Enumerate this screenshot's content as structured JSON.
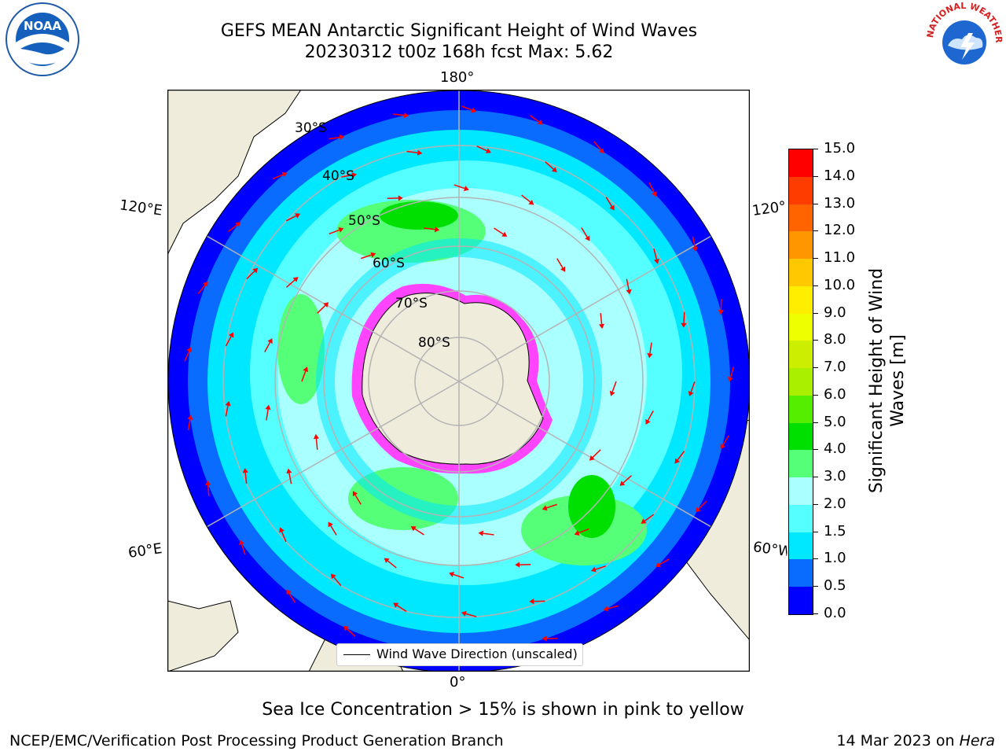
{
  "header": {
    "title_line1": "GEFS MEAN Antarctic Significant Height of Wind Waves",
    "title_line2": "20230312 t00z 168h fcst   Max: 5.62"
  },
  "logos": {
    "left": "NOAA",
    "right": "NATIONAL WEATHER SERVICE"
  },
  "map": {
    "projection": "south-polar-stereographic",
    "lon_labels": {
      "top": "180°",
      "bottom": "0°",
      "left_upper": "120°E",
      "left_lower": "60°E",
      "right_upper": "120°W",
      "right_lower": "60°W"
    },
    "lat_labels": [
      "30°S",
      "40°S",
      "50°S",
      "60°S",
      "70°S",
      "80°S"
    ],
    "legend_label": "Wind Wave Direction (unscaled)",
    "colors": {
      "ocean_deep_blue": "#0000ff",
      "ocean_blue": "#0a6cff",
      "cyan": "#00f0ff",
      "light_cyan": "#aaffff",
      "green_light": "#55ff77",
      "green": "#00e000",
      "land": "#efecdc",
      "ice_pink": "#ff44ff",
      "arrow_red": "#ff0000"
    }
  },
  "colorbar": {
    "label": "Significant Height of Wind Waves [m]",
    "ticks": [
      "0.0",
      "0.5",
      "1.0",
      "1.5",
      "2.0",
      "3.0",
      "4.0",
      "5.0",
      "6.0",
      "7.0",
      "8.0",
      "9.0",
      "10.0",
      "11.0",
      "12.0",
      "13.0",
      "14.0",
      "15.0"
    ],
    "colors": [
      "#0000ff",
      "#0a6cff",
      "#00e8ff",
      "#55ffff",
      "#aaffff",
      "#55ff77",
      "#00e000",
      "#55ee00",
      "#aaee00",
      "#ccee00",
      "#eeff00",
      "#ffee00",
      "#ffc800",
      "#ff9600",
      "#ff6400",
      "#ff3c00",
      "#ff0000"
    ]
  },
  "note": "Sea Ice Concentration > 15% is shown in pink to yellow",
  "footer": {
    "left": "NCEP/EMC/Verification Post Processing Product Generation Branch",
    "right_date": "14 Mar 2023 on ",
    "right_machine": "Hera"
  }
}
